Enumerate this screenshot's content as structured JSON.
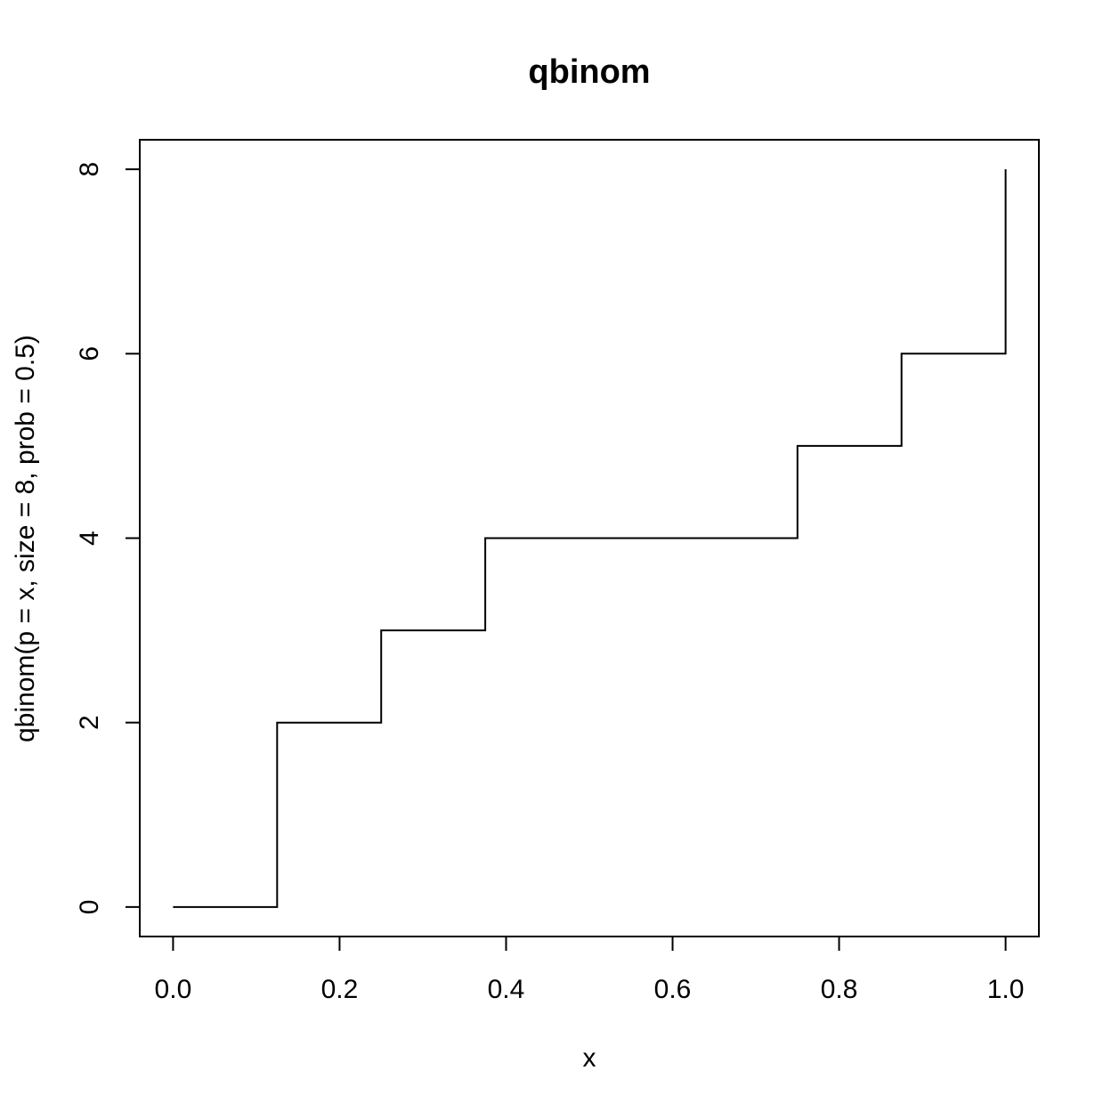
{
  "chart_data": {
    "type": "line",
    "title": "qbinom",
    "xlabel": "x",
    "ylabel": "qbinom(p = x, size = 8, prob = 0.5)",
    "xlim": [
      -0.04,
      1.04
    ],
    "ylim": [
      -0.32,
      8.32
    ],
    "x_ticks": [
      0.0,
      0.2,
      0.4,
      0.6,
      0.8,
      1.0
    ],
    "x_tick_labels": [
      "0.0",
      "0.2",
      "0.4",
      "0.6",
      "0.8",
      "1.0"
    ],
    "y_ticks": [
      0,
      2,
      4,
      6,
      8
    ],
    "y_tick_labels": [
      "0",
      "2",
      "4",
      "6",
      "8"
    ],
    "line_style": "step",
    "color": "#000000",
    "series": [
      {
        "x": [
          0.0,
          0.125,
          0.125,
          0.25,
          0.25,
          0.375,
          0.375,
          0.75,
          0.75,
          0.875,
          0.875,
          1.0,
          1.0
        ],
        "y": [
          0,
          0,
          2,
          2,
          3,
          3,
          4,
          4,
          5,
          5,
          6,
          6,
          8
        ]
      }
    ]
  }
}
